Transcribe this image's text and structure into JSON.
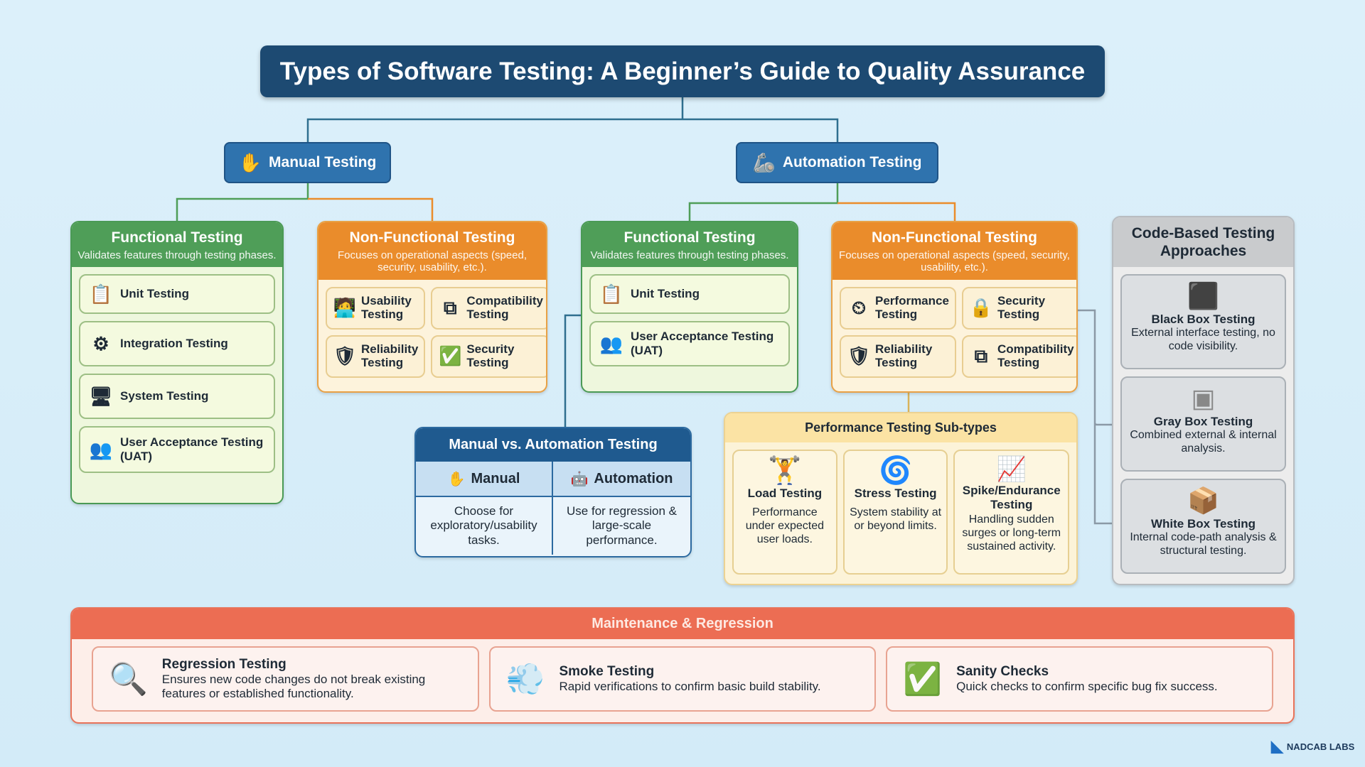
{
  "title": "Types of Software Testing: A Beginner’s Guide to Quality Assurance",
  "manual": {
    "label": "Manual Testing",
    "icon": "hand-icon",
    "functional": {
      "title": "Functional Testing",
      "desc": "Validates features through testing phases.",
      "items": [
        "Unit Testing",
        "Integration Testing",
        "System Testing",
        "User Acceptance Testing (UAT)"
      ]
    },
    "nonfunctional": {
      "title": "Non-Functional Testing",
      "desc": "Focuses on operational aspects (speed, security, usability, etc.).",
      "items": [
        "Usability Testing",
        "Compatibility Testing",
        "Reliability Testing",
        "Security Testing"
      ]
    }
  },
  "automation": {
    "label": "Automation Testing",
    "icon": "robot-arm-icon",
    "functional": {
      "title": "Functional Testing",
      "desc": "Validates features through testing phases.",
      "items": [
        "Unit Testing",
        "User Acceptance Testing (UAT)"
      ]
    },
    "nonfunctional": {
      "title": "Non-Functional Testing",
      "desc": "Focuses on operational aspects (speed, security, usability, etc.).",
      "items": [
        "Performance Testing",
        "Security Testing",
        "Reliability Testing",
        "Compatibility Testing"
      ]
    }
  },
  "comparison": {
    "title": "Manual vs. Automation Testing",
    "columns": [
      {
        "label": "Manual",
        "desc": "Choose for exploratory/usability tasks."
      },
      {
        "label": "Automation",
        "desc": "Use for regression & large-scale performance."
      }
    ]
  },
  "performance": {
    "title": "Performance Testing Sub-types",
    "items": [
      {
        "title": "Load Testing",
        "desc": "Performance under expected user loads."
      },
      {
        "title": "Stress Testing",
        "desc": "System stability at or beyond limits."
      },
      {
        "title": "Spike/Endurance Testing",
        "desc": "Handling sudden surges or long-term sustained activity."
      }
    ]
  },
  "code_based": {
    "title": "Code-Based Testing Approaches",
    "items": [
      {
        "title": "Black Box Testing",
        "desc": "External interface testing, no code visibility."
      },
      {
        "title": "Gray Box Testing",
        "desc": "Combined external & internal analysis."
      },
      {
        "title": "White Box Testing",
        "desc": "Internal code-path analysis & structural testing."
      }
    ]
  },
  "maintenance": {
    "title": "Maintenance & Regression",
    "items": [
      {
        "title": "Regression Testing",
        "desc": "Ensures new code changes do not break existing features or established functionality."
      },
      {
        "title": "Smoke Testing",
        "desc": "Rapid verifications to confirm basic build stability."
      },
      {
        "title": "Sanity Checks",
        "desc": "Quick checks to confirm specific bug fix success."
      }
    ]
  },
  "logo": "NADCAB LABS",
  "colors": {
    "title": "#1d4a72",
    "functional": "#4f9e58",
    "nonfunctional": "#ea8c2b",
    "maintenance": "#ec6d53",
    "code_based": "#c9cbcd"
  }
}
